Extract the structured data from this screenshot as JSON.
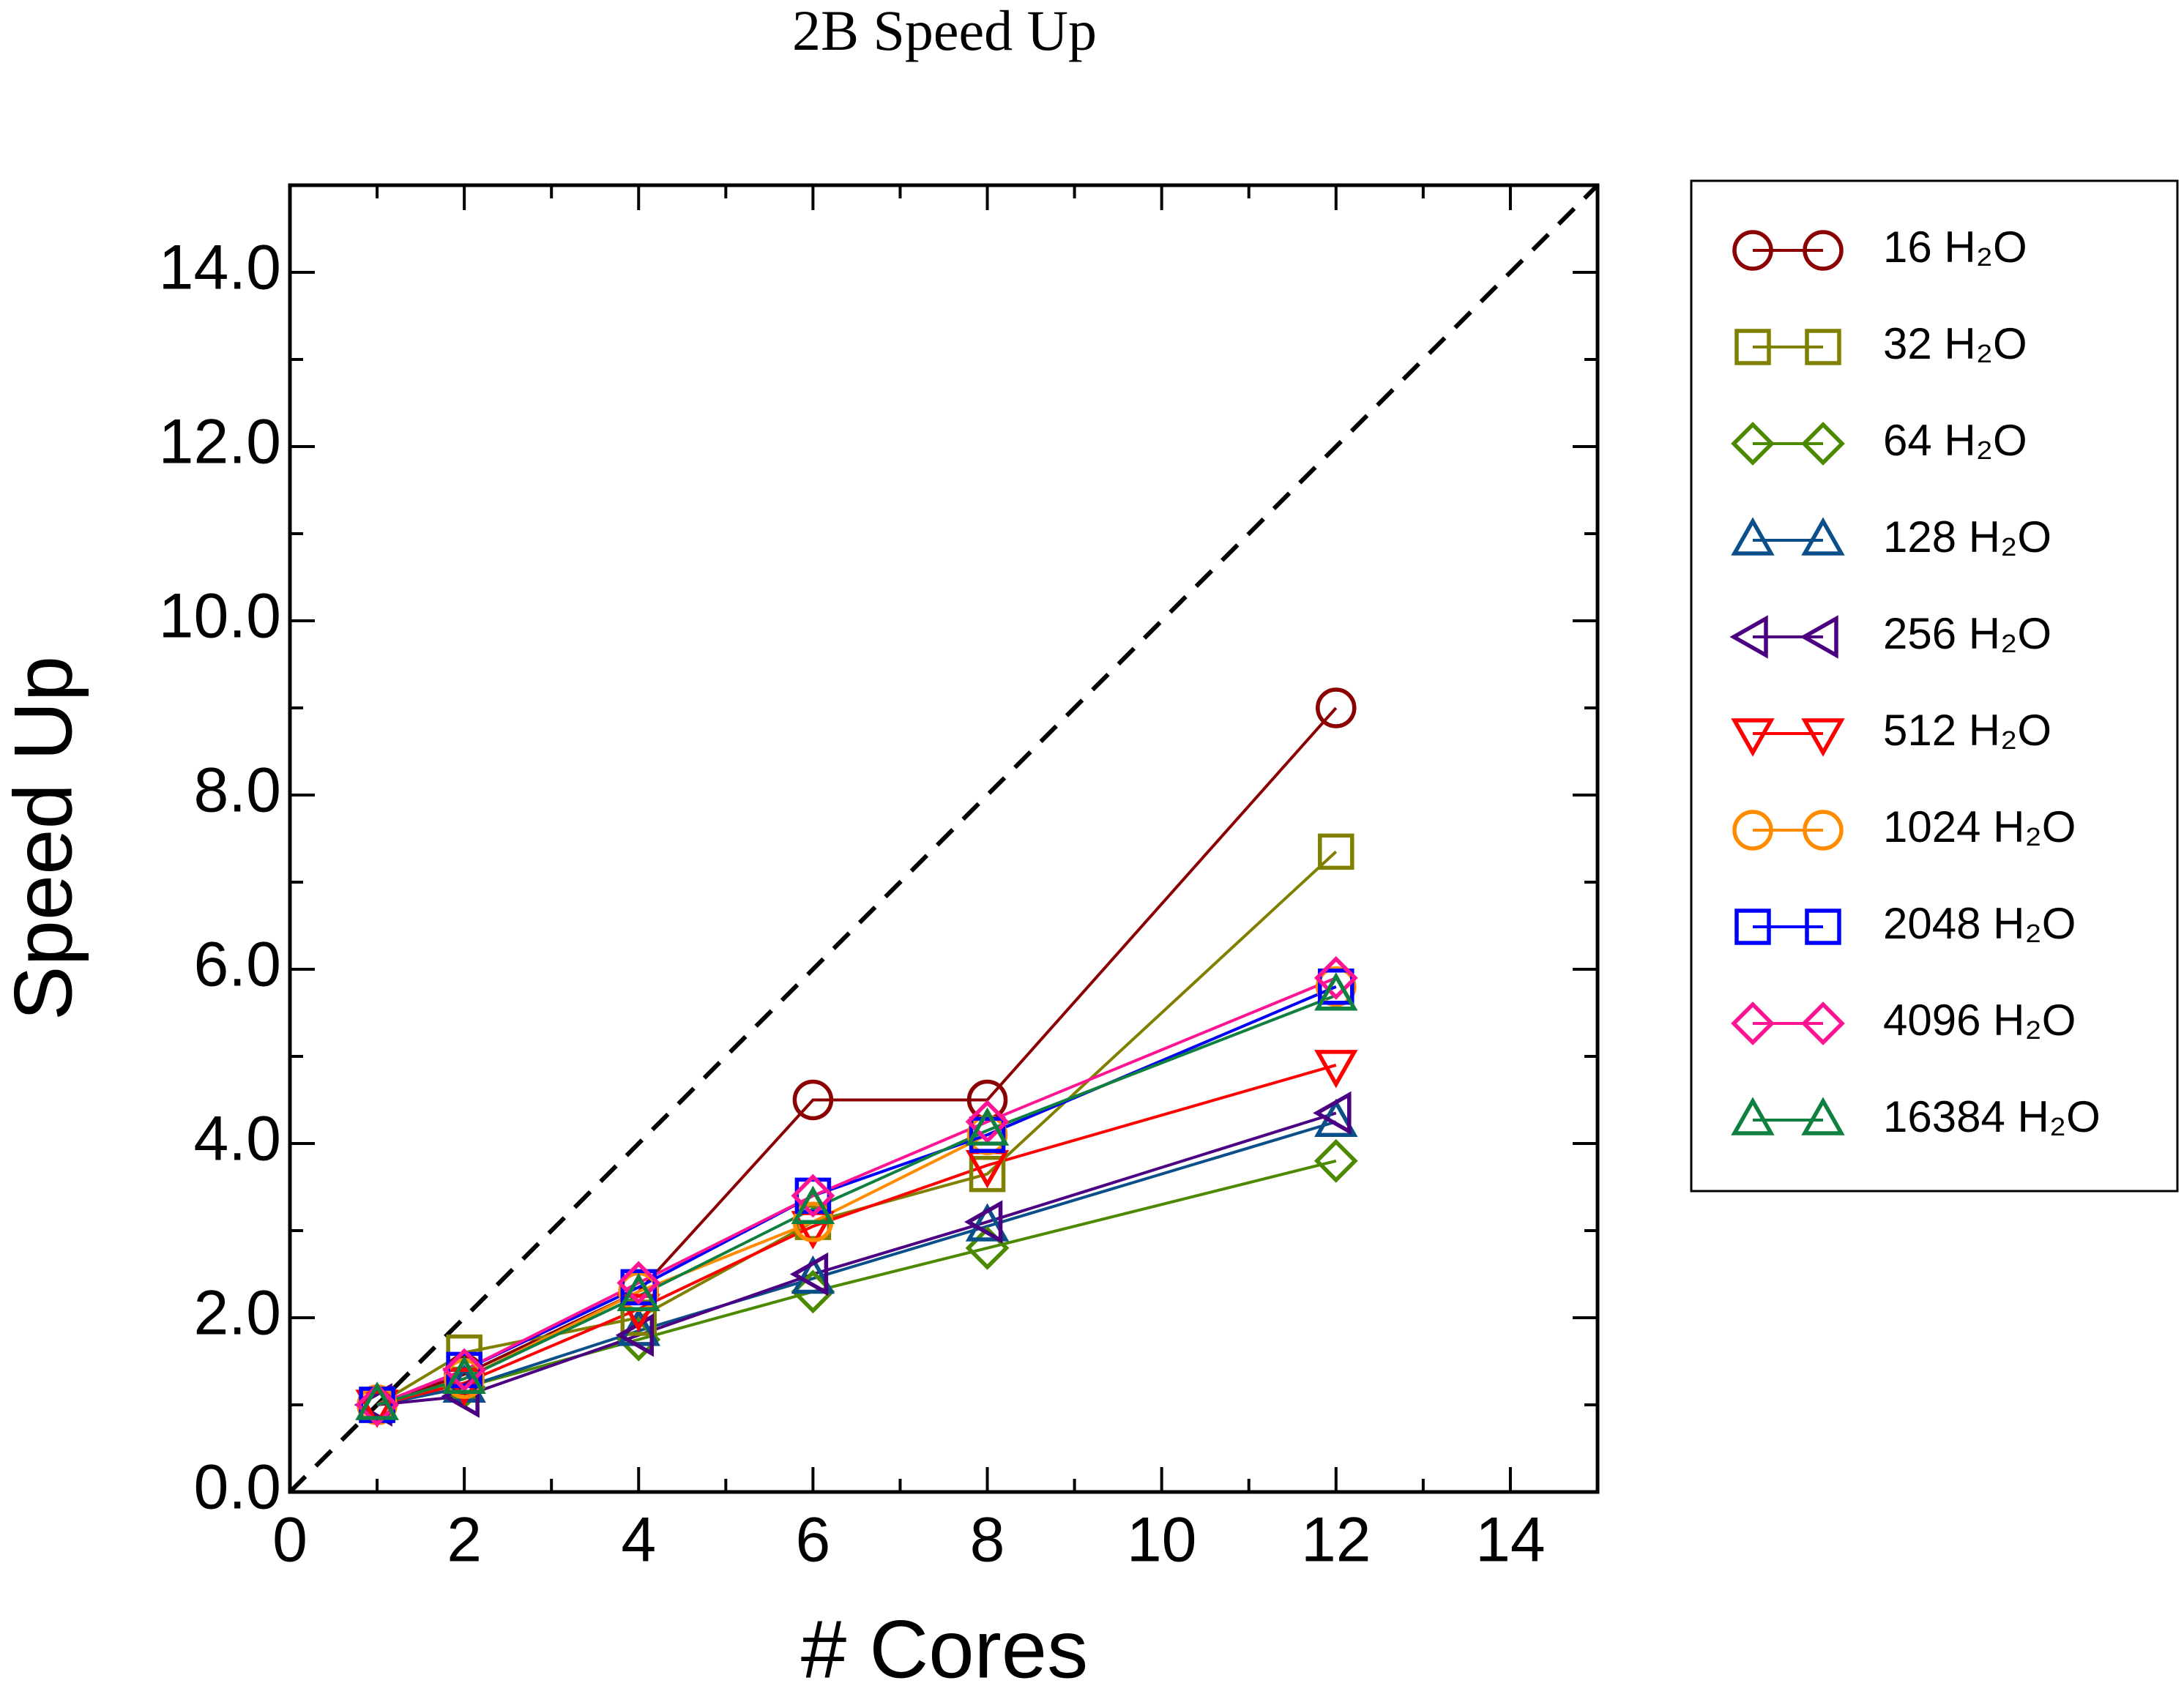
{
  "chart_data": {
    "type": "line",
    "title": "2B Speed Up",
    "x_label": "# Cores",
    "y_label": "Speed Up",
    "x": [
      1,
      2,
      4,
      6,
      8,
      12
    ],
    "xlim": [
      0,
      15
    ],
    "ylim": [
      0,
      15
    ],
    "xticks": [
      0,
      2,
      4,
      6,
      8,
      10,
      12,
      14
    ],
    "yticks": [
      {
        "value": 0,
        "label": "0.0"
      },
      {
        "value": 2,
        "label": "2.0"
      },
      {
        "value": 4,
        "label": "4.0"
      },
      {
        "value": 6,
        "label": "6.0"
      },
      {
        "value": 8,
        "label": "8.0"
      },
      {
        "value": 10,
        "label": "10.0"
      },
      {
        "value": 12,
        "label": "12.0"
      },
      {
        "value": 14,
        "label": "14.0"
      }
    ],
    "grid": false,
    "legend": "outside-right",
    "series": [
      {
        "name": "16 H₂O",
        "color": "#8b0000",
        "marker": "circle",
        "values": [
          1.0,
          1.35,
          2.3,
          4.5,
          4.5,
          9.0
        ]
      },
      {
        "name": "32 H₂O",
        "color": "#808000",
        "marker": "square",
        "values": [
          1.0,
          1.6,
          2.0,
          3.1,
          3.65,
          7.35
        ]
      },
      {
        "name": "64 H₂O",
        "color": "#4b8a00",
        "marker": "diamond",
        "values": [
          1.0,
          1.2,
          1.75,
          2.3,
          2.8,
          3.8
        ]
      },
      {
        "name": "128 H₂O",
        "color": "#0b4f8a",
        "marker": "triangle-up",
        "values": [
          1.0,
          1.2,
          1.85,
          2.45,
          3.05,
          4.25
        ]
      },
      {
        "name": "256 H₂O",
        "color": "#4b0082",
        "marker": "triangle-left",
        "values": [
          1.0,
          1.1,
          1.8,
          2.5,
          3.1,
          4.35
        ]
      },
      {
        "name": "512 H₂O",
        "color": "#ff0000",
        "marker": "triangle-down",
        "values": [
          1.0,
          1.25,
          2.1,
          3.05,
          3.75,
          4.9
        ]
      },
      {
        "name": "1024 H₂O",
        "color": "#ff8c00",
        "marker": "circle",
        "values": [
          1.0,
          1.3,
          2.3,
          3.1,
          4.1,
          5.8
        ]
      },
      {
        "name": "2048 H₂O",
        "color": "#0000ff",
        "marker": "square",
        "values": [
          1.0,
          1.4,
          2.35,
          3.4,
          4.1,
          5.8
        ]
      },
      {
        "name": "4096 H₂O",
        "color": "#ff1493",
        "marker": "diamond",
        "values": [
          1.0,
          1.4,
          2.4,
          3.4,
          4.25,
          5.9
        ]
      },
      {
        "name": "16384 H₂O",
        "color": "#108040",
        "marker": "triangle-up",
        "values": [
          1.0,
          1.3,
          2.25,
          3.25,
          4.15,
          5.7
        ]
      }
    ]
  }
}
